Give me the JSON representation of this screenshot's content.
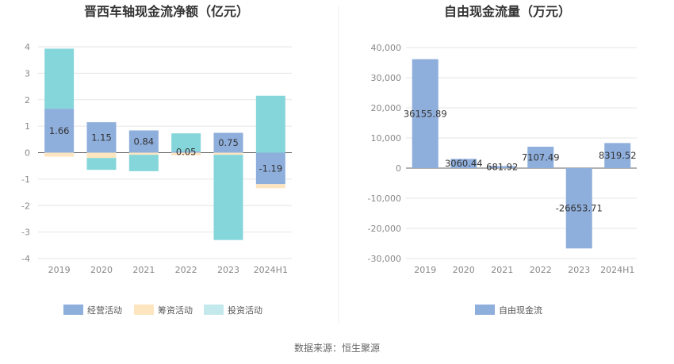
{
  "source": "数据来源：恒生聚源",
  "colors": {
    "operating": "#8eaedc",
    "financing": "#fde5bf",
    "investing": "#85d6db",
    "investing_legend": "#c3e9ec",
    "fcf": "#8eaedc",
    "grid": "#e6e6e6",
    "axis": "#666666"
  },
  "chart_data": [
    {
      "type": "bar",
      "stacked": true,
      "title": "晋西车轴现金流净额（亿元）",
      "categories": [
        "2019",
        "2020",
        "2021",
        "2022",
        "2023",
        "2024H1"
      ],
      "ylim": [
        -4,
        4
      ],
      "yticks": [
        "4",
        "3",
        "2",
        "1",
        "0",
        "-1",
        "-2",
        "-3",
        "-4"
      ],
      "grid": true,
      "legend_position": "bottom",
      "series": [
        {
          "name": "经营活动",
          "values": [
            1.66,
            1.15,
            0.84,
            0.05,
            0.75,
            -1.19
          ]
        },
        {
          "name": "筹资活动",
          "values": [
            -0.15,
            -0.2,
            -0.08,
            -0.1,
            -0.08,
            -0.15
          ]
        },
        {
          "name": "投资活动",
          "values": [
            2.27,
            -0.45,
            -0.62,
            0.68,
            -3.22,
            2.15
          ]
        }
      ],
      "data_labels": [
        "1.66",
        "1.15",
        "0.84",
        "0.05",
        "0.75",
        "-1.19"
      ]
    },
    {
      "type": "bar",
      "title": "自由现金流量（万元）",
      "categories": [
        "2019",
        "2020",
        "2021",
        "2022",
        "2023",
        "2024H1"
      ],
      "ylim": [
        -30000,
        40000
      ],
      "yticks": [
        "40,000",
        "30,000",
        "20,000",
        "10,000",
        "0",
        "-10,000",
        "-20,000",
        "-30,000"
      ],
      "grid": true,
      "legend_position": "bottom",
      "series": [
        {
          "name": "自由现金流",
          "values": [
            36155.89,
            3060.44,
            681.92,
            7107.49,
            -26653.71,
            8319.52
          ]
        }
      ],
      "data_labels": [
        "36155.89",
        "3060.44",
        "681.92",
        "7107.49",
        "-26653.71",
        "8319.52"
      ]
    }
  ]
}
